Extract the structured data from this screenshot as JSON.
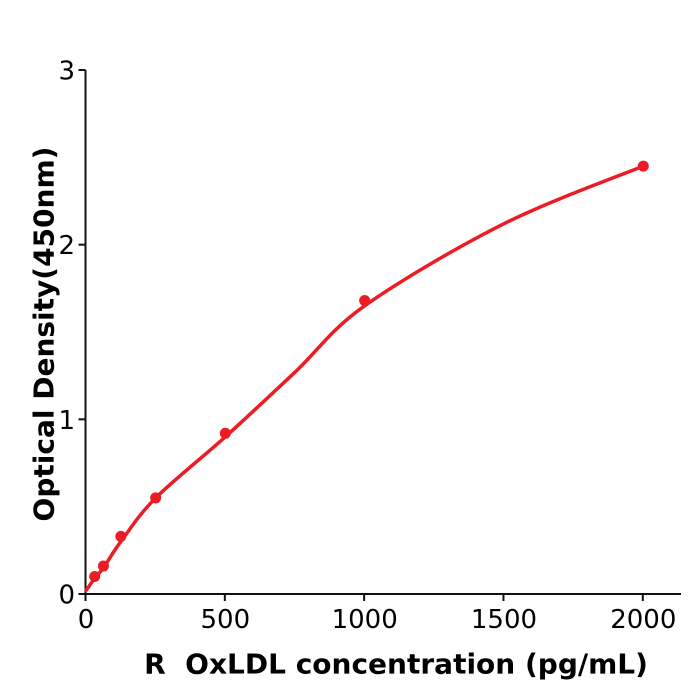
{
  "chart_data": {
    "type": "scatter",
    "title": "",
    "xlabel": "R  OxLDL concentration (pg/mL)",
    "ylabel": "Optical Density(450nm)",
    "points": {
      "name": "standard-points",
      "x": [
        31.25,
        62.5,
        125,
        250,
        500,
        1000,
        2000
      ],
      "y": [
        0.1,
        0.16,
        0.33,
        0.55,
        0.92,
        1.68,
        2.45
      ]
    },
    "fit_curve": {
      "name": "fitted-standard-curve",
      "x": [
        0,
        31.25,
        62.5,
        125,
        250,
        500,
        750,
        1000,
        1500,
        2000
      ],
      "y": [
        0.02,
        0.09,
        0.15,
        0.3,
        0.55,
        0.9,
        1.27,
        1.65,
        2.12,
        2.45
      ]
    },
    "x_ticks": [
      0,
      500,
      1000,
      1500,
      2000
    ],
    "y_ticks": [
      0,
      1,
      2,
      3
    ],
    "xlim": [
      0,
      2140
    ],
    "ylim": [
      0,
      3
    ],
    "grid": false,
    "legend": null,
    "marker_color": "#ed1c24",
    "line_color": "#ed1c24",
    "axis_color": "#111111"
  }
}
